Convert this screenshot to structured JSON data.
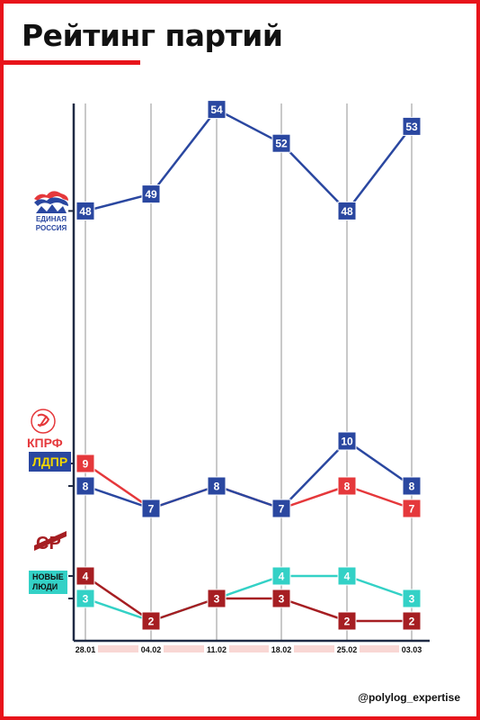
{
  "title": "Рейтинг партий",
  "handle": "@polylog_expertise",
  "parties": {
    "er": {
      "line1": "ЕДИНАЯ",
      "line2": "РОССИЯ"
    },
    "kprf": "КПРФ",
    "ldpr": "ЛДПР",
    "sr": "СР",
    "nl": {
      "line1": "НОВЫЕ",
      "line2": "ЛЮДИ"
    }
  },
  "colors": {
    "er": "#2a47a0",
    "kprf": "#e5383b",
    "ldpr": "#2a47a0",
    "sr": "#a61e22",
    "nl": "#33d1c6",
    "accent": "#e8141b"
  },
  "chart_data": {
    "type": "line",
    "title": "Рейтинг партий",
    "x": [
      "28.01",
      "04.02",
      "11.02",
      "18.02",
      "25.02",
      "03.03"
    ],
    "ylim": [
      0,
      56
    ],
    "series": [
      {
        "name": "ЕДИНАЯ РОССИЯ",
        "color": "#2a47a0",
        "values": [
          48,
          49,
          54,
          52,
          48,
          53
        ]
      },
      {
        "name": "КПРФ",
        "color": "#e5383b",
        "values": [
          9,
          7,
          8,
          7,
          8,
          7
        ]
      },
      {
        "name": "ЛДПР",
        "color": "#2a47a0",
        "values": [
          8,
          7,
          8,
          7,
          10,
          8
        ]
      },
      {
        "name": "СР",
        "color": "#a61e22",
        "values": [
          4,
          2,
          3,
          3,
          2,
          2
        ]
      },
      {
        "name": "НОВЫЕ ЛЮДИ",
        "color": "#33d1c6",
        "values": [
          3,
          2,
          3,
          4,
          4,
          3
        ]
      }
    ]
  }
}
